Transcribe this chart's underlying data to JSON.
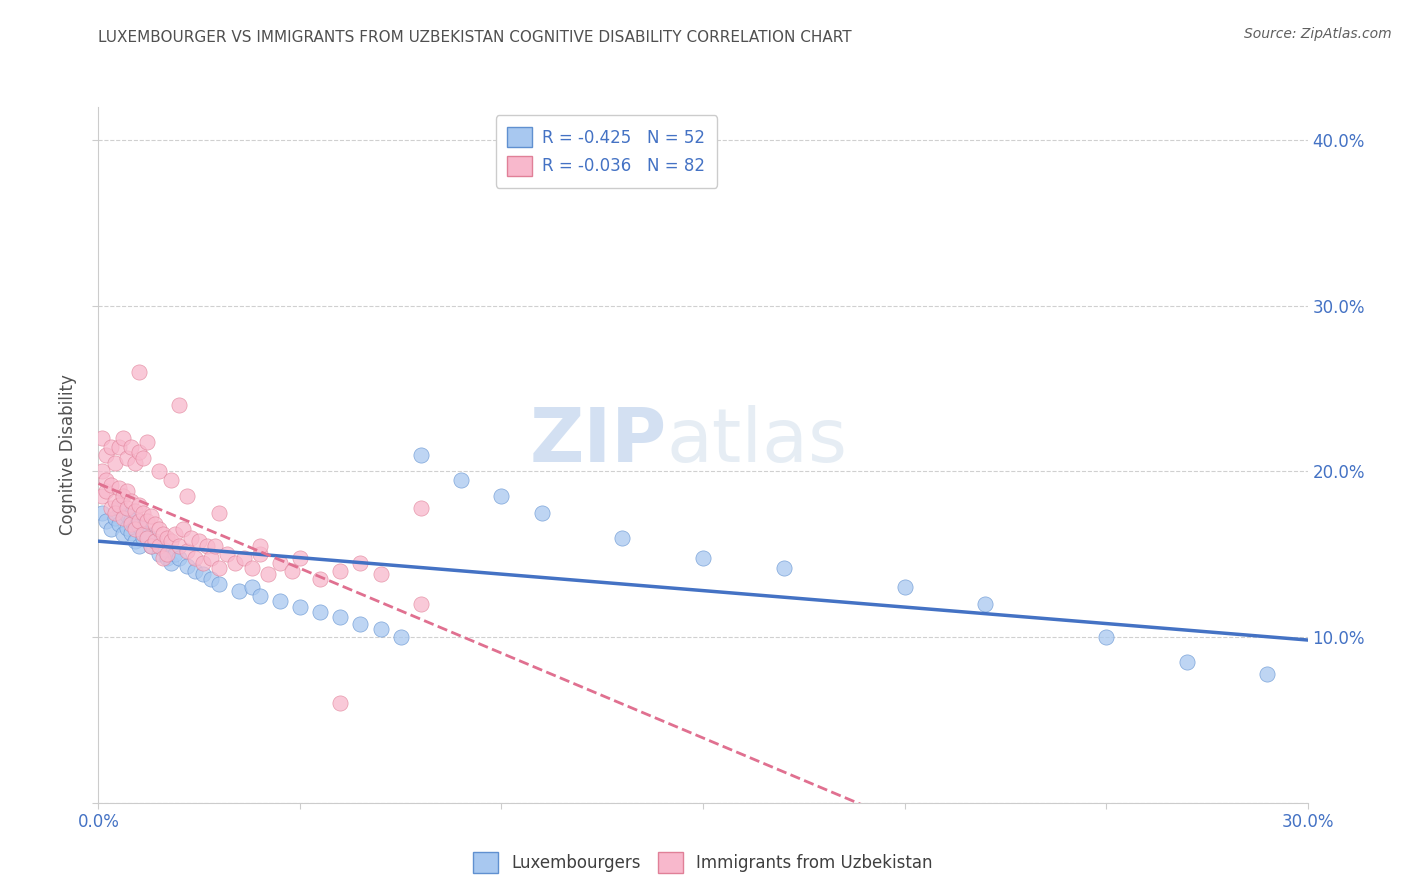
{
  "title": "LUXEMBOURGER VS IMMIGRANTS FROM UZBEKISTAN COGNITIVE DISABILITY CORRELATION CHART",
  "source": "Source: ZipAtlas.com",
  "ylabel": "Cognitive Disability",
  "xlim": [
    0.0,
    0.3
  ],
  "ylim": [
    0.0,
    0.42
  ],
  "xticks": [
    0.0,
    0.05,
    0.1,
    0.15,
    0.2,
    0.25,
    0.3
  ],
  "xtick_labels": [
    "0.0%",
    "",
    "",
    "",
    "",
    "",
    "30.0%"
  ],
  "yticks": [
    0.0,
    0.1,
    0.2,
    0.3,
    0.4
  ],
  "ytick_right_labels": [
    "",
    "10.0%",
    "20.0%",
    "30.0%",
    "40.0%"
  ],
  "lux_R": -0.425,
  "lux_N": 52,
  "uzb_R": -0.036,
  "uzb_N": 82,
  "lux_color": "#a8c8f0",
  "lux_edge_color": "#6090d0",
  "lux_line_color": "#4472c4",
  "uzb_color": "#f8b8cc",
  "uzb_edge_color": "#e08098",
  "uzb_line_color": "#e07090",
  "background_color": "#ffffff",
  "grid_color": "#d0d0d0",
  "title_color": "#505050",
  "axis_color": "#4472c4",
  "legend_lux_label": "Luxembourgers",
  "legend_uzb_label": "Immigrants from Uzbekistan",
  "lux_scatter_x": [
    0.001,
    0.002,
    0.003,
    0.004,
    0.005,
    0.005,
    0.006,
    0.007,
    0.007,
    0.008,
    0.008,
    0.009,
    0.009,
    0.01,
    0.01,
    0.011,
    0.012,
    0.013,
    0.014,
    0.015,
    0.016,
    0.017,
    0.018,
    0.019,
    0.02,
    0.022,
    0.024,
    0.026,
    0.028,
    0.03,
    0.035,
    0.038,
    0.04,
    0.045,
    0.05,
    0.055,
    0.06,
    0.065,
    0.07,
    0.075,
    0.08,
    0.09,
    0.1,
    0.11,
    0.13,
    0.15,
    0.17,
    0.2,
    0.22,
    0.25,
    0.27,
    0.29
  ],
  "lux_scatter_y": [
    0.175,
    0.17,
    0.165,
    0.172,
    0.168,
    0.178,
    0.162,
    0.174,
    0.166,
    0.171,
    0.163,
    0.169,
    0.158,
    0.167,
    0.155,
    0.16,
    0.162,
    0.155,
    0.158,
    0.15,
    0.153,
    0.148,
    0.145,
    0.15,
    0.148,
    0.143,
    0.14,
    0.138,
    0.135,
    0.132,
    0.128,
    0.13,
    0.125,
    0.122,
    0.118,
    0.115,
    0.112,
    0.108,
    0.105,
    0.1,
    0.21,
    0.195,
    0.185,
    0.175,
    0.16,
    0.148,
    0.142,
    0.13,
    0.12,
    0.1,
    0.085,
    0.078
  ],
  "uzb_scatter_x": [
    0.001,
    0.001,
    0.002,
    0.002,
    0.003,
    0.003,
    0.004,
    0.004,
    0.005,
    0.005,
    0.006,
    0.006,
    0.007,
    0.007,
    0.008,
    0.008,
    0.009,
    0.009,
    0.01,
    0.01,
    0.011,
    0.011,
    0.012,
    0.012,
    0.013,
    0.013,
    0.014,
    0.014,
    0.015,
    0.015,
    0.016,
    0.016,
    0.017,
    0.017,
    0.018,
    0.019,
    0.02,
    0.021,
    0.022,
    0.023,
    0.024,
    0.025,
    0.026,
    0.027,
    0.028,
    0.029,
    0.03,
    0.032,
    0.034,
    0.036,
    0.038,
    0.04,
    0.042,
    0.045,
    0.048,
    0.05,
    0.055,
    0.06,
    0.065,
    0.07,
    0.001,
    0.002,
    0.003,
    0.004,
    0.005,
    0.006,
    0.007,
    0.008,
    0.009,
    0.01,
    0.011,
    0.012,
    0.015,
    0.018,
    0.022,
    0.03,
    0.04,
    0.08,
    0.02,
    0.01,
    0.08,
    0.06
  ],
  "uzb_scatter_y": [
    0.185,
    0.2,
    0.188,
    0.195,
    0.178,
    0.192,
    0.182,
    0.175,
    0.19,
    0.18,
    0.185,
    0.172,
    0.188,
    0.178,
    0.182,
    0.168,
    0.176,
    0.165,
    0.18,
    0.17,
    0.175,
    0.162,
    0.17,
    0.16,
    0.173,
    0.155,
    0.168,
    0.158,
    0.165,
    0.155,
    0.162,
    0.148,
    0.16,
    0.15,
    0.158,
    0.162,
    0.155,
    0.165,
    0.152,
    0.16,
    0.148,
    0.158,
    0.145,
    0.155,
    0.148,
    0.155,
    0.142,
    0.15,
    0.145,
    0.148,
    0.142,
    0.15,
    0.138,
    0.145,
    0.14,
    0.148,
    0.135,
    0.14,
    0.145,
    0.138,
    0.22,
    0.21,
    0.215,
    0.205,
    0.215,
    0.22,
    0.208,
    0.215,
    0.205,
    0.212,
    0.208,
    0.218,
    0.2,
    0.195,
    0.185,
    0.175,
    0.155,
    0.178,
    0.24,
    0.26,
    0.12,
    0.06
  ]
}
